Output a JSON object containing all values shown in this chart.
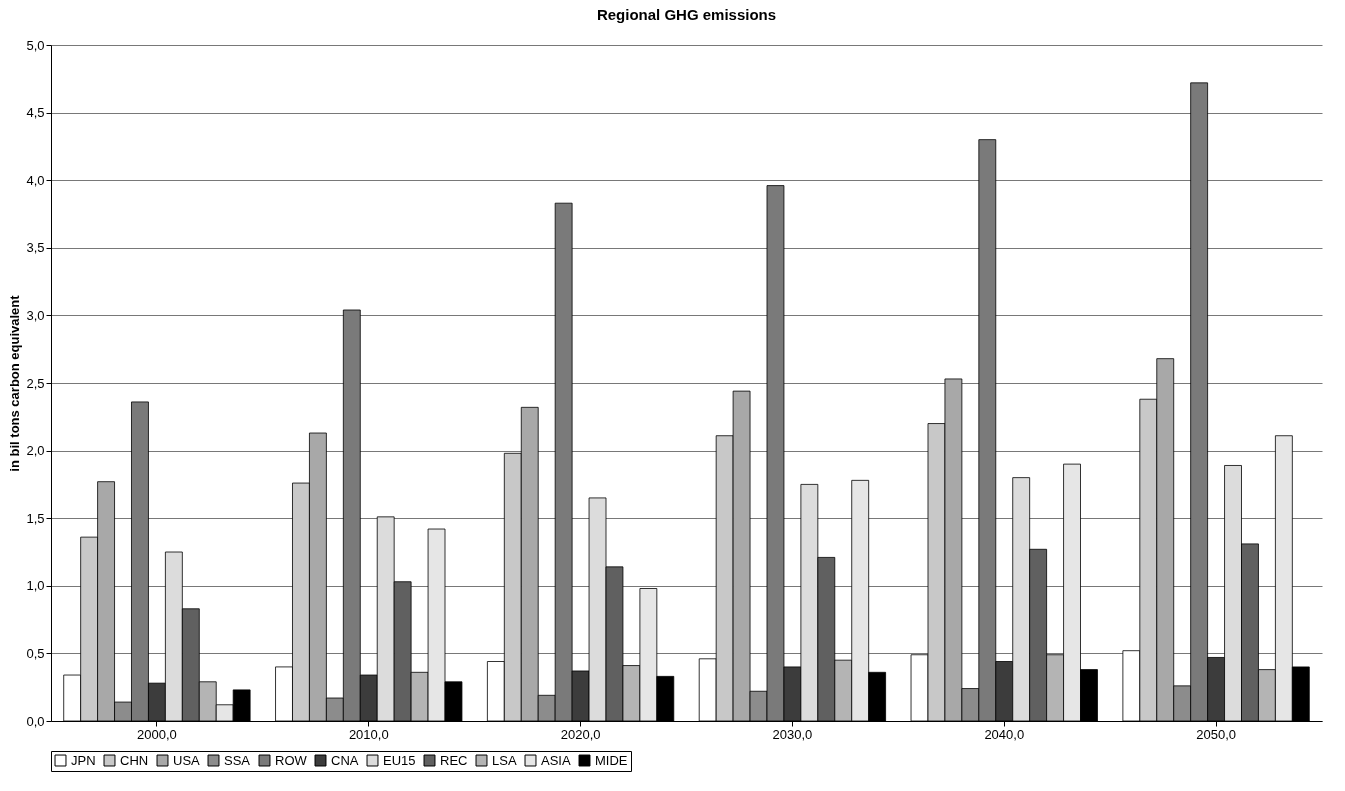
{
  "chart_data": {
    "type": "bar",
    "title": "Regional GHG emissions",
    "ylabel": "in bil tons carbon equivalent",
    "categories": [
      "2000,0",
      "2010,0",
      "2020,0",
      "2030,0",
      "2040,0",
      "2050,0"
    ],
    "series": [
      {
        "name": "JPN",
        "color": "#ffffff",
        "values": [
          0.34,
          0.4,
          0.44,
          0.46,
          0.49,
          0.52
        ]
      },
      {
        "name": "CHN",
        "color": "#c8c8c8",
        "values": [
          1.36,
          1.76,
          1.98,
          2.11,
          2.2,
          2.38
        ]
      },
      {
        "name": "USA",
        "color": "#a8a8a8",
        "values": [
          1.77,
          2.13,
          2.32,
          2.44,
          2.53,
          2.68
        ]
      },
      {
        "name": "SSA",
        "color": "#8c8c8c",
        "values": [
          0.14,
          0.17,
          0.19,
          0.22,
          0.24,
          0.26
        ]
      },
      {
        "name": "ROW",
        "color": "#7a7a7a",
        "values": [
          2.36,
          3.04,
          3.83,
          3.96,
          4.3,
          4.72
        ]
      },
      {
        "name": "CNA",
        "color": "#3c3c3c",
        "values": [
          0.28,
          0.34,
          0.37,
          0.4,
          0.44,
          0.47
        ]
      },
      {
        "name": "EU15",
        "color": "#dcdcdc",
        "values": [
          1.25,
          1.51,
          1.65,
          1.75,
          1.8,
          1.89
        ]
      },
      {
        "name": "REC",
        "color": "#606060",
        "values": [
          0.83,
          1.03,
          1.14,
          1.21,
          1.27,
          1.31
        ]
      },
      {
        "name": "LSA",
        "color": "#b4b4b4",
        "values": [
          0.29,
          0.36,
          0.41,
          0.45,
          0.49,
          0.38
        ]
      },
      {
        "name": "ASIA",
        "color": "#e6e6e6",
        "values": [
          0.12,
          1.42,
          0.98,
          1.78,
          1.9,
          2.11
        ]
      },
      {
        "name": "MIDE",
        "color": "#000000",
        "values": [
          0.23,
          0.29,
          0.33,
          0.36,
          0.38,
          0.4
        ]
      }
    ],
    "ylim": [
      0,
      5
    ],
    "yticks": [
      {
        "value": 0,
        "label": "0,0"
      },
      {
        "value": 0.5,
        "label": "0,5"
      },
      {
        "value": 1,
        "label": "1,0"
      },
      {
        "value": 1.5,
        "label": "1,5"
      },
      {
        "value": 2,
        "label": "2,0"
      },
      {
        "value": 2.5,
        "label": "2,5"
      },
      {
        "value": 3,
        "label": "3,0"
      },
      {
        "value": 3.5,
        "label": "3,5"
      },
      {
        "value": 4,
        "label": "4,0"
      },
      {
        "value": 4.5,
        "label": "4,5"
      },
      {
        "value": 5,
        "label": "5,0"
      }
    ],
    "grid": "y",
    "legend": "bottom"
  }
}
